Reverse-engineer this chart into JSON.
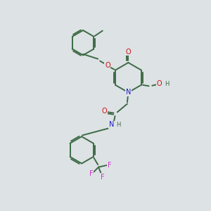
{
  "background_color": "#dde2e5",
  "bond_color": "#3d6b45",
  "atom_colors": {
    "N": "#1a1acc",
    "O": "#cc1111",
    "F": "#cc33cc",
    "H": "#3d6b45"
  },
  "figsize": [
    3.0,
    3.0
  ],
  "dpi": 100
}
